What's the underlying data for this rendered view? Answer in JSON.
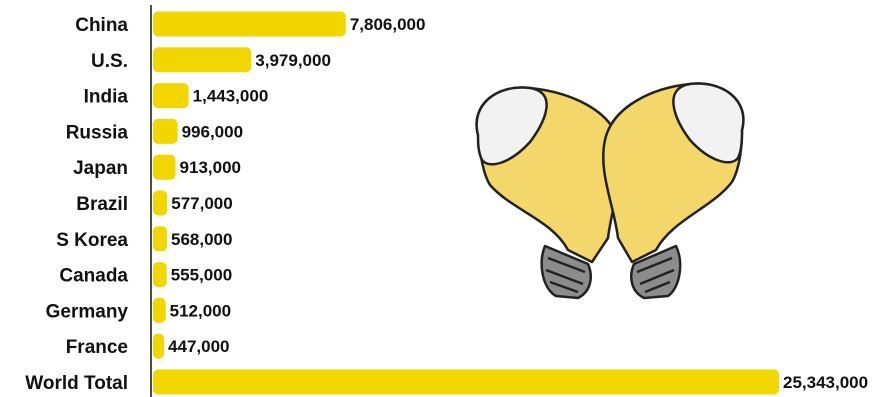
{
  "chart_data": {
    "type": "bar",
    "orientation": "horizontal",
    "categories": [
      "China",
      "U.S.",
      "India",
      "Russia",
      "Japan",
      "Brazil",
      "S Korea",
      "Canada",
      "Germany",
      "France",
      "World Total"
    ],
    "values": [
      7806000,
      3979000,
      1443000,
      996000,
      913000,
      577000,
      568000,
      555000,
      512000,
      447000,
      25343000
    ],
    "value_labels": [
      "7,806,000",
      "3,979,000",
      "1,443,000",
      "996,000",
      "913,000",
      "577,000",
      "568,000",
      "555,000",
      "512,000",
      "447,000",
      "25,343,000"
    ],
    "title": "",
    "xlabel": "",
    "ylabel": "",
    "xlim": [
      0,
      25343000
    ],
    "grid": false,
    "legend": "none",
    "bar_color": "#F2D600"
  },
  "decoration": {
    "illustration": "crossed-light-bulbs",
    "bulb_glass_color": "#F3D76A",
    "bulb_top_color": "#F2F2F2",
    "bulb_base_color": "#8C8C8C",
    "outline_color": "#222222"
  }
}
